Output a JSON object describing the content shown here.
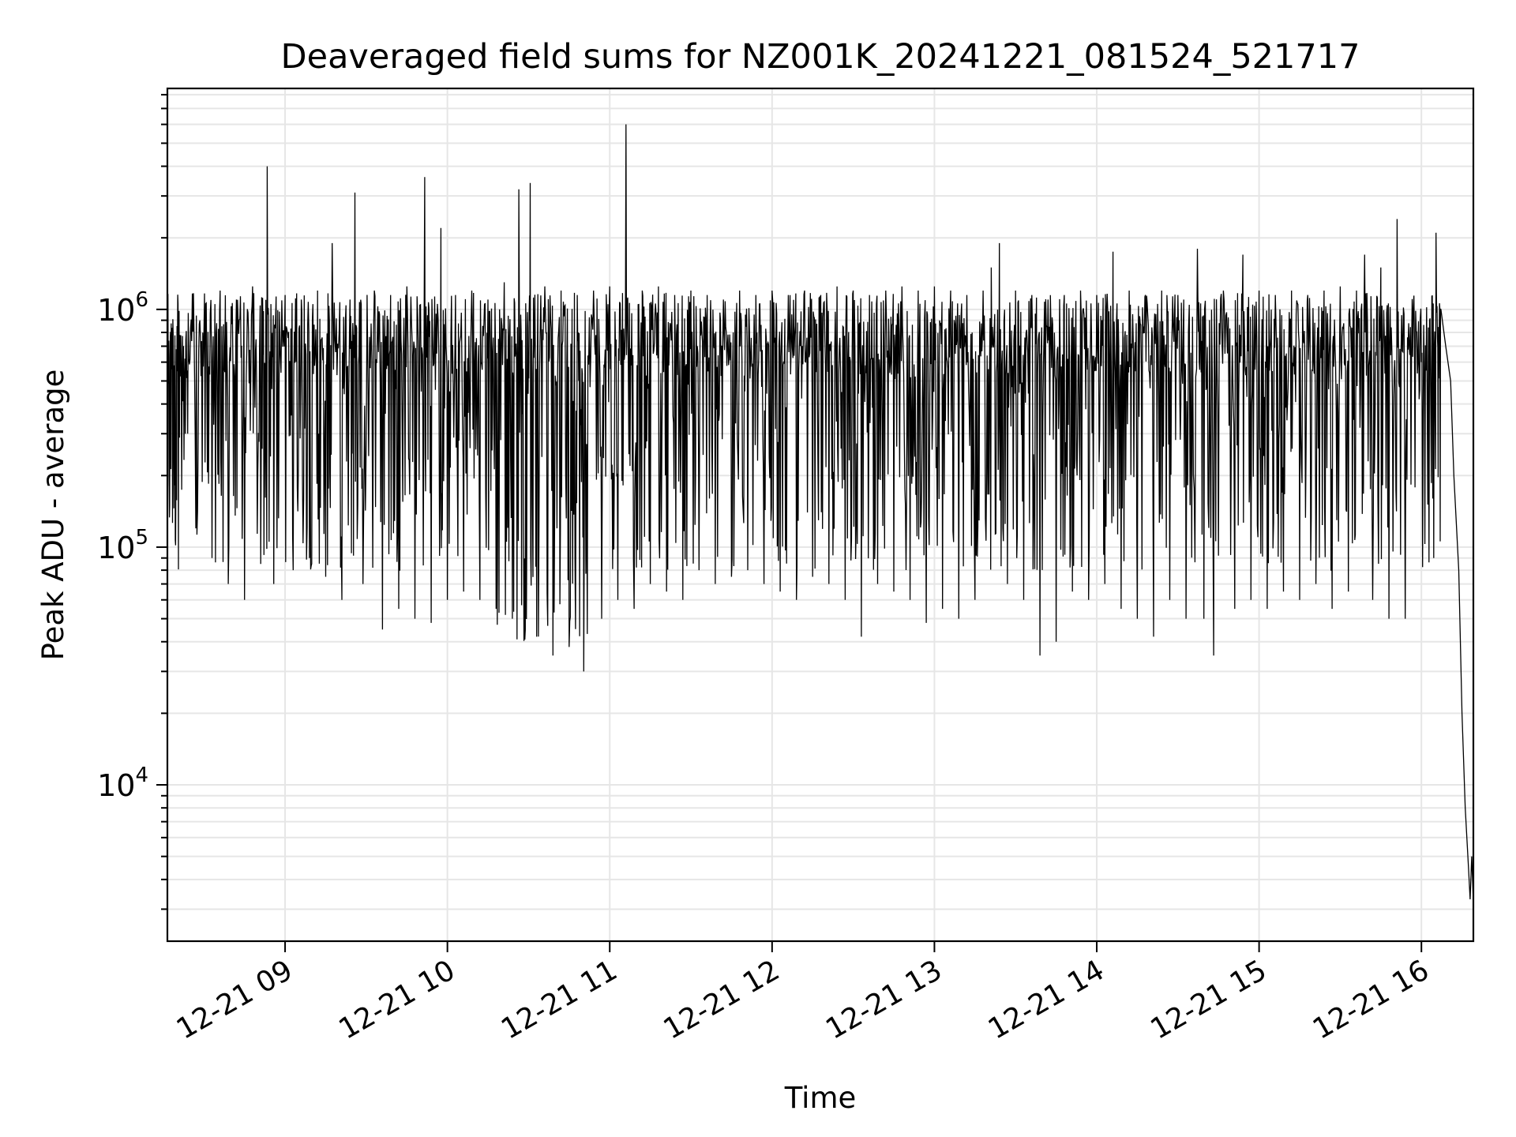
{
  "chart_data": {
    "type": "line",
    "title": "Deaveraged field sums for NZ001K_20241221_081524_521717",
    "xlabel": "Time",
    "ylabel": "Peak ADU - average",
    "yscale": "log",
    "grid": true,
    "x_ticks": [
      "12-21 09",
      "12-21 10",
      "12-21 11",
      "12-21 12",
      "12-21 13",
      "12-21 14",
      "12-21 15",
      "12-21 16"
    ],
    "x_tick_hours": [
      9,
      10,
      11,
      12,
      13,
      14,
      15,
      16
    ],
    "y_ticks": [
      {
        "base": "10",
        "exp": "4",
        "value": 10000
      },
      {
        "base": "10",
        "exp": "5",
        "value": 100000
      },
      {
        "base": "10",
        "exp": "6",
        "value": 1000000
      }
    ],
    "xlim_hours": [
      8.275,
      16.32
    ],
    "ylim": [
      2200,
      8500000
    ],
    "series": [
      {
        "color": "#000000",
        "points": [
          [
            8.275,
            700000
          ],
          [
            8.3,
            560000
          ],
          [
            8.33,
            680000
          ],
          [
            8.36,
            600000
          ],
          [
            8.4,
            300000
          ],
          [
            8.45,
            120000
          ],
          [
            8.5,
            800000
          ],
          [
            8.55,
            90000
          ],
          [
            8.6,
            1200000
          ],
          [
            8.65,
            70000
          ],
          [
            8.7,
            1100000
          ],
          [
            8.75,
            60000
          ],
          [
            8.8,
            1250000
          ],
          [
            8.85,
            85000
          ],
          [
            8.89,
            4000000
          ],
          [
            8.93,
            70000
          ],
          [
            9.0,
            1150000
          ],
          [
            9.05,
            80000
          ],
          [
            9.1,
            1100000
          ],
          [
            9.15,
            90000
          ],
          [
            9.2,
            1200000
          ],
          [
            9.25,
            75000
          ],
          [
            9.29,
            1900000
          ],
          [
            9.35,
            60000
          ],
          [
            9.4,
            1100000
          ],
          [
            9.43,
            3100000
          ],
          [
            9.48,
            70000
          ],
          [
            9.55,
            1200000
          ],
          [
            9.6,
            45000
          ],
          [
            9.65,
            1150000
          ],
          [
            9.7,
            55000
          ],
          [
            9.75,
            1250000
          ],
          [
            9.8,
            50000
          ],
          [
            9.86,
            3600000
          ],
          [
            9.9,
            48000
          ],
          [
            9.96,
            2200000
          ],
          [
            10.0,
            60000
          ],
          [
            10.05,
            1150000
          ],
          [
            10.1,
            65000
          ],
          [
            10.15,
            1200000
          ],
          [
            10.2,
            60000
          ],
          [
            10.25,
            1100000
          ],
          [
            10.3,
            55000
          ],
          [
            10.35,
            1300000
          ],
          [
            10.4,
            50000
          ],
          [
            10.44,
            3200000
          ],
          [
            10.48,
            45000
          ],
          [
            10.51,
            3400000
          ],
          [
            10.55,
            42000
          ],
          [
            10.6,
            1250000
          ],
          [
            10.65,
            35000
          ],
          [
            10.7,
            1200000
          ],
          [
            10.75,
            38000
          ],
          [
            10.8,
            1150000
          ],
          [
            10.84,
            30000
          ],
          [
            10.9,
            1200000
          ],
          [
            10.95,
            50000
          ],
          [
            11.0,
            1250000
          ],
          [
            11.05,
            60000
          ],
          [
            11.1,
            6000000
          ],
          [
            11.15,
            55000
          ],
          [
            11.2,
            1200000
          ],
          [
            11.25,
            70000
          ],
          [
            11.3,
            1250000
          ],
          [
            11.35,
            65000
          ],
          [
            11.4,
            1150000
          ],
          [
            11.45,
            60000
          ],
          [
            11.5,
            1200000
          ],
          [
            11.55,
            80000
          ],
          [
            11.6,
            1150000
          ],
          [
            11.65,
            70000
          ],
          [
            11.7,
            1100000
          ],
          [
            11.75,
            75000
          ],
          [
            11.8,
            1200000
          ],
          [
            11.85,
            80000
          ],
          [
            11.9,
            1150000
          ],
          [
            11.95,
            70000
          ],
          [
            12.0,
            1200000
          ],
          [
            12.05,
            65000
          ],
          [
            12.1,
            1150000
          ],
          [
            12.15,
            60000
          ],
          [
            12.2,
            1200000
          ],
          [
            12.25,
            75000
          ],
          [
            12.3,
            1150000
          ],
          [
            12.35,
            70000
          ],
          [
            12.4,
            1250000
          ],
          [
            12.45,
            60000
          ],
          [
            12.5,
            1200000
          ],
          [
            12.55,
            42000
          ],
          [
            12.6,
            1150000
          ],
          [
            12.65,
            70000
          ],
          [
            12.7,
            1200000
          ],
          [
            12.75,
            65000
          ],
          [
            12.8,
            1250000
          ],
          [
            12.85,
            60000
          ],
          [
            12.9,
            1200000
          ],
          [
            12.95,
            48000
          ],
          [
            13.0,
            1250000
          ],
          [
            13.05,
            55000
          ],
          [
            13.1,
            1200000
          ],
          [
            13.15,
            50000
          ],
          [
            13.2,
            1150000
          ],
          [
            13.25,
            60000
          ],
          [
            13.3,
            1200000
          ],
          [
            13.35,
            1500000
          ],
          [
            13.4,
            1900000
          ],
          [
            13.45,
            70000
          ],
          [
            13.5,
            1200000
          ],
          [
            13.55,
            60000
          ],
          [
            13.6,
            1150000
          ],
          [
            13.65,
            35000
          ],
          [
            13.7,
            1100000
          ],
          [
            13.75,
            40000
          ],
          [
            13.8,
            1150000
          ],
          [
            13.85,
            65000
          ],
          [
            13.9,
            1200000
          ],
          [
            13.95,
            60000
          ],
          [
            14.0,
            1150000
          ],
          [
            14.05,
            70000
          ],
          [
            14.1,
            1750000
          ],
          [
            14.15,
            55000
          ],
          [
            14.2,
            1200000
          ],
          [
            14.25,
            50000
          ],
          [
            14.3,
            1150000
          ],
          [
            14.35,
            42000
          ],
          [
            14.4,
            1200000
          ],
          [
            14.45,
            60000
          ],
          [
            14.5,
            1150000
          ],
          [
            14.55,
            50000
          ],
          [
            14.62,
            1800000
          ],
          [
            14.66,
            50000
          ],
          [
            14.72,
            35000
          ],
          [
            14.78,
            1200000
          ],
          [
            14.85,
            55000
          ],
          [
            14.9,
            1700000
          ],
          [
            14.95,
            60000
          ],
          [
            15.0,
            1200000
          ],
          [
            15.05,
            55000
          ],
          [
            15.1,
            1150000
          ],
          [
            15.15,
            65000
          ],
          [
            15.2,
            1200000
          ],
          [
            15.25,
            60000
          ],
          [
            15.3,
            1150000
          ],
          [
            15.35,
            70000
          ],
          [
            15.4,
            1200000
          ],
          [
            15.45,
            55000
          ],
          [
            15.5,
            1250000
          ],
          [
            15.55,
            65000
          ],
          [
            15.6,
            1200000
          ],
          [
            15.65,
            1700000
          ],
          [
            15.7,
            60000
          ],
          [
            15.75,
            1500000
          ],
          [
            15.8,
            50000
          ],
          [
            15.85,
            2400000
          ],
          [
            15.9,
            50000
          ],
          [
            15.95,
            1000000
          ],
          [
            16.0,
            600000
          ],
          [
            16.05,
            900000
          ],
          [
            16.09,
            2100000
          ],
          [
            16.12,
            1000000
          ],
          [
            16.15,
            700000
          ],
          [
            16.18,
            500000
          ],
          [
            16.2,
            200000
          ],
          [
            16.23,
            80000
          ],
          [
            16.25,
            20000
          ],
          [
            16.27,
            8000
          ],
          [
            16.29,
            4500
          ],
          [
            16.3,
            3300
          ],
          [
            16.31,
            5000
          ],
          [
            16.32,
            3200
          ]
        ]
      }
    ]
  }
}
